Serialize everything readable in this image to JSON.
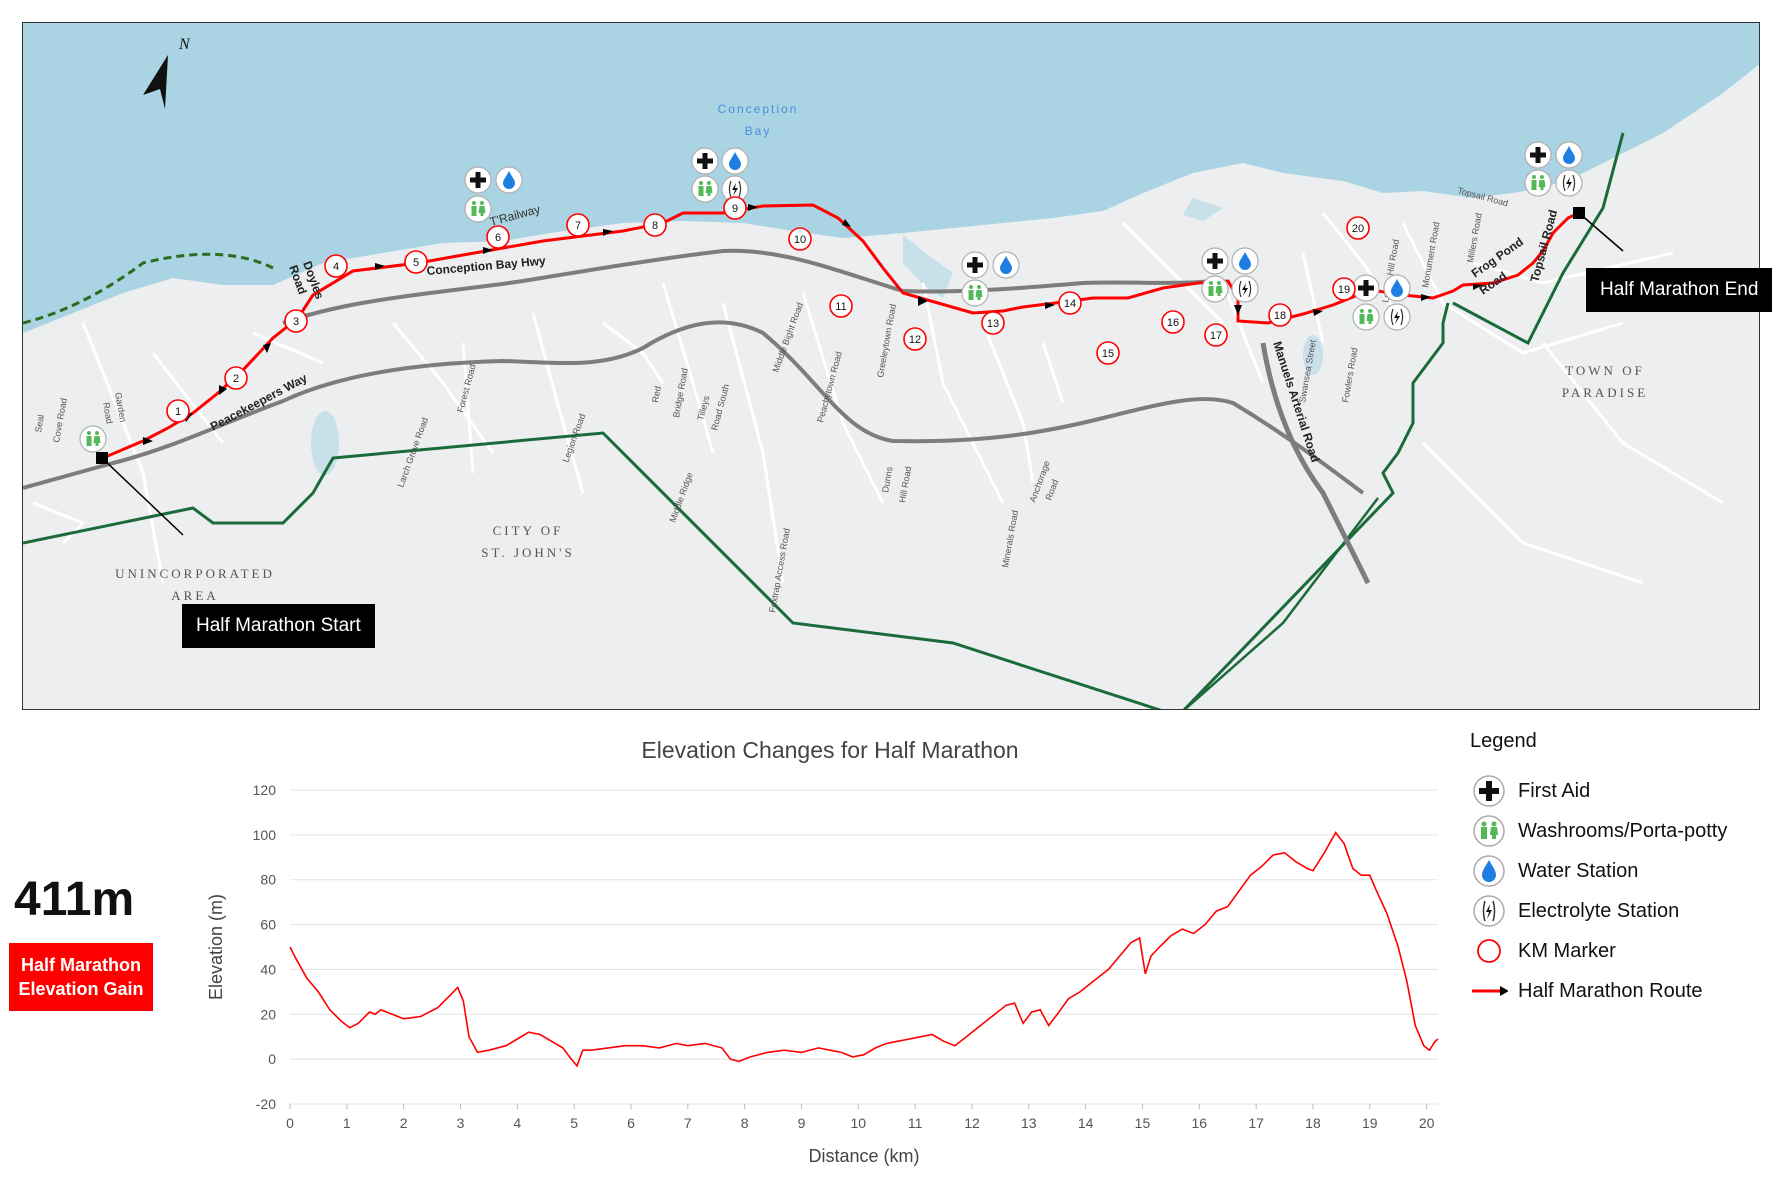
{
  "colors": {
    "water": "#aad3e3",
    "land": "#eceeef",
    "road": "#ffffff",
    "highway": "#7d7d7d",
    "route": "#ff0000",
    "boundary": "#1b6b3a",
    "washroom_green": "#52b85a",
    "water_drop": "#1e7fe0",
    "badge_red": "#ff0000"
  },
  "map": {
    "north_label": "N",
    "bay_label_line1": "Conception",
    "bay_label_line2": "Bay",
    "city_label_line1": "CITY OF",
    "city_label_line2": "ST. JOHN'S",
    "uninc_label_line1": "UNINCORPORATED",
    "uninc_label_line2": "AREA",
    "town_label_line1": "TOWN OF",
    "town_label_line2": "PARADISE",
    "start_label": "Half Marathon Start",
    "end_label": "Half Marathon End",
    "km_markers": [
      "1",
      "2",
      "3",
      "4",
      "5",
      "6",
      "7",
      "8",
      "9",
      "10",
      "11",
      "12",
      "13",
      "14",
      "15",
      "16",
      "17",
      "18",
      "19",
      "20"
    ],
    "road_labels": {
      "peacekeepers": "Peacekeepers Way",
      "conception_bay_hwy": "Conception Bay Hwy",
      "doyles_road_1": "Doyles",
      "doyles_road_2": "Road",
      "t_railway": "T'Railway",
      "manuels": "Manuels Arterial Road",
      "topsail": "Topsail Road",
      "frog_pond_1": "Frog Pond",
      "frog_pond_2": "Road",
      "seal_cove_1": "Seal",
      "seal_cove_2": "Cove Road",
      "garden_1": "Garden",
      "garden_2": "Road",
      "larch_grove": "Larch Grove Road",
      "forest": "Forest Road",
      "legion": "Legion Road",
      "red_bridge_1": "Red",
      "red_bridge_2": "Bridge Road",
      "tilleys_1": "Tilleys",
      "tilleys_2": "Road South",
      "middle_bight": "Middle Bight Road",
      "middle_ridge": "Middle Ridge",
      "foxtrap": "Foxtrap Access Road",
      "peachytown": "Peachytown Road",
      "greeleytown": "Greeleytown Road",
      "dunns_1": "Dunns",
      "dunns_2": "Hill Road",
      "minerals": "Minerals Road",
      "anchorage_1": "Anchorage",
      "anchorage_2": "Road",
      "swansea": "Swansea Street",
      "fowlers": "Fowlers Road",
      "lodge_hill": "Lodge Hill Road",
      "monument": "Monument Road",
      "millers": "Millers Road",
      "topsail_top": "Topsail Road"
    }
  },
  "elevation_gain": {
    "value": "411m",
    "label_line1": "Half Marathon",
    "label_line2": "Elevation Gain"
  },
  "legend": {
    "title": "Legend",
    "items": [
      {
        "label": "First Aid",
        "icon": "first-aid-icon"
      },
      {
        "label": "Washrooms/Porta-potty",
        "icon": "washroom-icon"
      },
      {
        "label": "Water Station",
        "icon": "water-drop-icon"
      },
      {
        "label": "Electrolyte Station",
        "icon": "electrolyte-icon"
      },
      {
        "label": "KM Marker",
        "icon": "km-marker-icon"
      },
      {
        "label": "Half Marathon Route",
        "icon": "route-arrow-icon"
      }
    ]
  },
  "chart_data": {
    "type": "line",
    "title": "Elevation Changes for Half Marathon",
    "xlabel": "Distance (km)",
    "ylabel": "Elevation (m)",
    "xlim": [
      0,
      20.2
    ],
    "ylim": [
      -20,
      120
    ],
    "xticks": [
      "0",
      "1",
      "2",
      "3",
      "4",
      "5",
      "6",
      "7",
      "8",
      "9",
      "10",
      "11",
      "12",
      "13",
      "14",
      "15",
      "16",
      "17",
      "18",
      "19",
      "20"
    ],
    "yticks": [
      "-20",
      "0",
      "20",
      "40",
      "60",
      "80",
      "100",
      "120"
    ],
    "grid": "horizontal",
    "series": [
      {
        "color": "#ff0000",
        "x": [
          0,
          0.1,
          0.3,
          0.5,
          0.7,
          0.9,
          1.05,
          1.2,
          1.4,
          1.5,
          1.6,
          1.8,
          2.0,
          2.3,
          2.6,
          2.8,
          2.95,
          3.05,
          3.15,
          3.3,
          3.5,
          3.8,
          4.0,
          4.2,
          4.4,
          4.6,
          4.8,
          4.95,
          5.05,
          5.15,
          5.3,
          5.6,
          5.9,
          6.2,
          6.5,
          6.8,
          7.0,
          7.3,
          7.6,
          7.75,
          7.9,
          8.1,
          8.4,
          8.7,
          9.0,
          9.3,
          9.5,
          9.7,
          9.9,
          10.1,
          10.3,
          10.5,
          10.7,
          10.9,
          11.1,
          11.3,
          11.5,
          11.7,
          11.9,
          12.1,
          12.3,
          12.6,
          12.75,
          12.9,
          13.05,
          13.2,
          13.35,
          13.5,
          13.7,
          13.9,
          14.0,
          14.2,
          14.4,
          14.6,
          14.8,
          14.95,
          15.05,
          15.15,
          15.3,
          15.5,
          15.7,
          15.9,
          16.1,
          16.3,
          16.5,
          16.7,
          16.9,
          17.1,
          17.3,
          17.5,
          17.7,
          17.9,
          18.0,
          18.2,
          18.4,
          18.55,
          18.7,
          18.85,
          19.0,
          19.1,
          19.3,
          19.5,
          19.65,
          19.8,
          19.95,
          20.05,
          20.15,
          20.2
        ],
        "y": [
          50,
          45,
          36,
          30,
          22,
          17,
          14,
          16,
          21,
          20,
          22,
          20,
          18,
          19,
          23,
          28,
          32,
          26,
          10,
          3,
          4,
          6,
          9,
          12,
          11,
          8,
          5,
          0,
          -3,
          4,
          4,
          5,
          6,
          6,
          5,
          7,
          6,
          7,
          5,
          0,
          -1,
          1,
          3,
          4,
          3,
          5,
          4,
          3,
          1,
          2,
          5,
          7,
          8,
          9,
          10,
          11,
          8,
          6,
          10,
          14,
          18,
          24,
          25,
          16,
          21,
          22,
          15,
          20,
          27,
          30,
          32,
          36,
          40,
          46,
          52,
          54,
          38,
          46,
          50,
          55,
          58,
          56,
          60,
          66,
          68,
          75,
          82,
          86,
          91,
          92,
          88,
          85,
          84,
          92,
          101,
          96,
          85,
          82,
          82,
          76,
          65,
          50,
          35,
          15,
          6,
          4,
          8,
          9
        ]
      }
    ]
  }
}
